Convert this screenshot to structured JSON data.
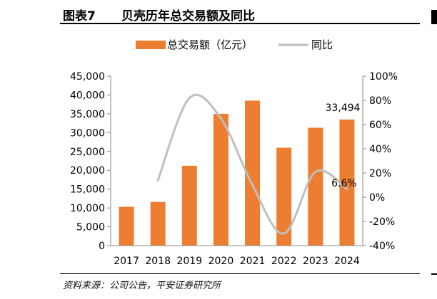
{
  "header": {
    "figure_number": "图表7",
    "title": "贝壳历年总交易额及同比"
  },
  "source": "资料来源：公司公告，平安证券研究所",
  "colors": {
    "bar": "#ED7D31",
    "line": "#BFBFBF",
    "axis": "#888888",
    "text": "#000000"
  },
  "chart_data": {
    "type": "bar",
    "title": "贝壳历年总交易额及同比",
    "categories": [
      "2017",
      "2018",
      "2019",
      "2020",
      "2021",
      "2022",
      "2023",
      "2024"
    ],
    "series": [
      {
        "name": "总交易额（亿元）",
        "type": "bar",
        "axis": "left",
        "values": [
          10300,
          11600,
          21200,
          35000,
          38500,
          26000,
          31300,
          33494
        ]
      },
      {
        "name": "同比",
        "type": "line",
        "axis": "right",
        "values": [
          null,
          14,
          82,
          65,
          10,
          -30,
          21,
          6.6
        ]
      }
    ],
    "y_left": {
      "min": 0,
      "max": 45000,
      "ticks": [
        0,
        5000,
        10000,
        15000,
        20000,
        25000,
        30000,
        35000,
        40000,
        45000
      ],
      "tick_labels": [
        "0",
        "5,000",
        "10,000",
        "15,000",
        "20,000",
        "25,000",
        "30,000",
        "35,000",
        "40,000",
        "45,000"
      ]
    },
    "y_right": {
      "min": -40,
      "max": 100,
      "ticks": [
        -40,
        -20,
        0,
        20,
        40,
        60,
        80,
        100
      ],
      "tick_labels": [
        "-40%",
        "-20%",
        "0%",
        "20%",
        "40%",
        "60%",
        "80%",
        "100%"
      ]
    },
    "data_labels": [
      {
        "series": 0,
        "index": 7,
        "text": "33,494"
      },
      {
        "series": 1,
        "index": 7,
        "text": "6.6%"
      }
    ],
    "legend_position": "top",
    "grid": false
  }
}
